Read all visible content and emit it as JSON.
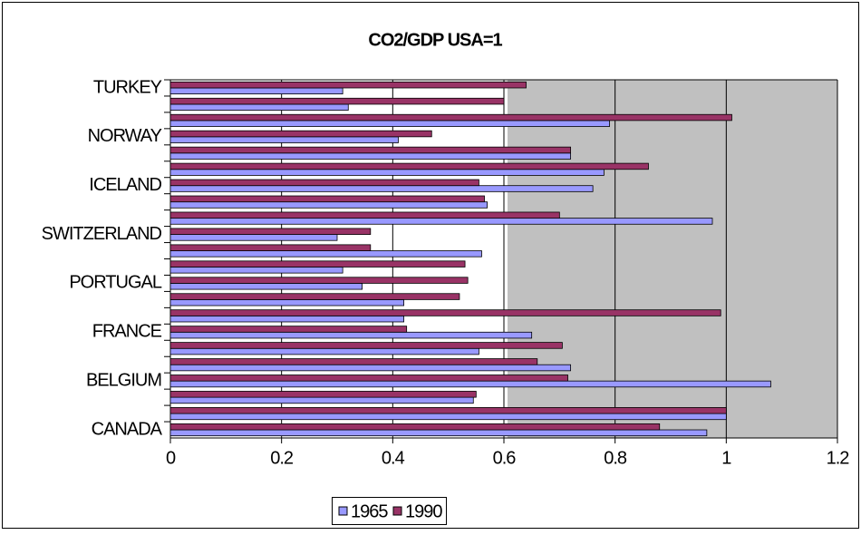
{
  "chart_data": {
    "type": "bar",
    "orientation": "horizontal",
    "title": "CO2/GDP USA=1",
    "categories": [
      "CANADA",
      null,
      null,
      "BELGIUM",
      null,
      null,
      "FRANCE",
      null,
      null,
      "PORTUGAL",
      null,
      null,
      "SWITZERLAND",
      null,
      null,
      "ICELAND",
      null,
      null,
      "NORWAY",
      null,
      null,
      "TURKEY"
    ],
    "series": [
      {
        "name": "1965",
        "color": "#9999ff",
        "values": [
          0.965,
          1.0,
          0.545,
          1.08,
          0.72,
          0.555,
          0.65,
          0.42,
          0.42,
          0.345,
          0.31,
          0.56,
          0.3,
          0.975,
          0.57,
          0.76,
          0.78,
          0.72,
          0.41,
          0.79,
          0.32,
          0.31
        ]
      },
      {
        "name": "1990",
        "color": "#993366",
        "values": [
          0.88,
          1.0,
          0.55,
          0.715,
          0.66,
          0.705,
          0.425,
          0.99,
          0.52,
          0.535,
          0.53,
          0.36,
          0.36,
          0.7,
          0.565,
          0.555,
          0.86,
          0.72,
          0.47,
          1.01,
          0.6,
          0.64
        ]
      }
    ],
    "xlim": [
      0,
      1.2
    ],
    "xticks": [
      0,
      0.2,
      0.4,
      0.6,
      0.8,
      1,
      1.2
    ],
    "grid": true,
    "legend": "bottom"
  }
}
